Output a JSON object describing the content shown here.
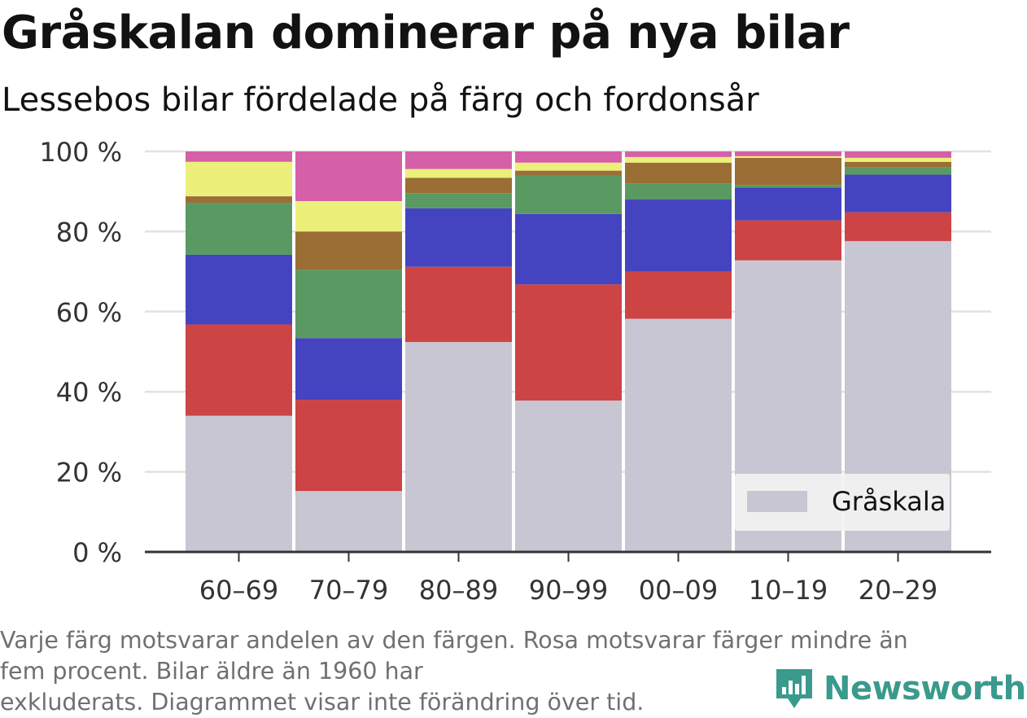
{
  "title": "Gråskalan dominerar på nya bilar",
  "subtitle": "Lessebos bilar fördelade på färg och fordonsår",
  "footnote": {
    "line1": "Varje färg motsvarar andelen av den färgen. Rosa motsvarar färger mindre än",
    "line2": "fem procent. Bilar äldre än 1960 har",
    "line3": "exkluderats. Diagrammet visar inte förändring över tid."
  },
  "logo": {
    "text": "Newsworthy",
    "icon": "bar-chart-badge-icon",
    "color": "#3a9a8c"
  },
  "chart_data": {
    "type": "bar",
    "stacked": true,
    "categories": [
      "60–69",
      "70–79",
      "80–89",
      "90–99",
      "00–09",
      "10–19",
      "20–29"
    ],
    "ylim": [
      0,
      100
    ],
    "yticks": [
      0,
      20,
      40,
      60,
      80,
      100
    ],
    "ytick_labels": [
      "0 %",
      "20 %",
      "40 %",
      "60 %",
      "80 %",
      "100 %"
    ],
    "grid": true,
    "legend": {
      "placement": "bottom-right",
      "entries": [
        "Gråskala"
      ]
    },
    "series": [
      {
        "name": "Gråskala",
        "color": "#c8c6d2",
        "values": [
          34,
          15.2,
          52.4,
          37.8,
          58.2,
          72.8,
          77.6
        ]
      },
      {
        "color": "#cc4444",
        "values": [
          22.8,
          22.8,
          18.8,
          29.0,
          11.8,
          10.0,
          7.2
        ]
      },
      {
        "color": "#4444c0",
        "values": [
          17.4,
          15.4,
          14.6,
          17.6,
          18.0,
          8.2,
          9.4
        ]
      },
      {
        "color": "#5a9a62",
        "values": [
          13.0,
          17.0,
          3.8,
          9.6,
          4.0,
          0.6,
          1.8
        ]
      },
      {
        "color": "#9a6e34",
        "values": [
          1.6,
          9.6,
          3.8,
          1.2,
          5.2,
          6.8,
          1.4
        ]
      },
      {
        "color": "#ecf07a",
        "values": [
          8.6,
          7.6,
          2.2,
          2.0,
          1.4,
          0.4,
          1.0
        ]
      },
      {
        "color": "#d660a8",
        "values": [
          2.6,
          12.4,
          4.4,
          2.8,
          1.4,
          1.2,
          1.6
        ]
      }
    ]
  }
}
